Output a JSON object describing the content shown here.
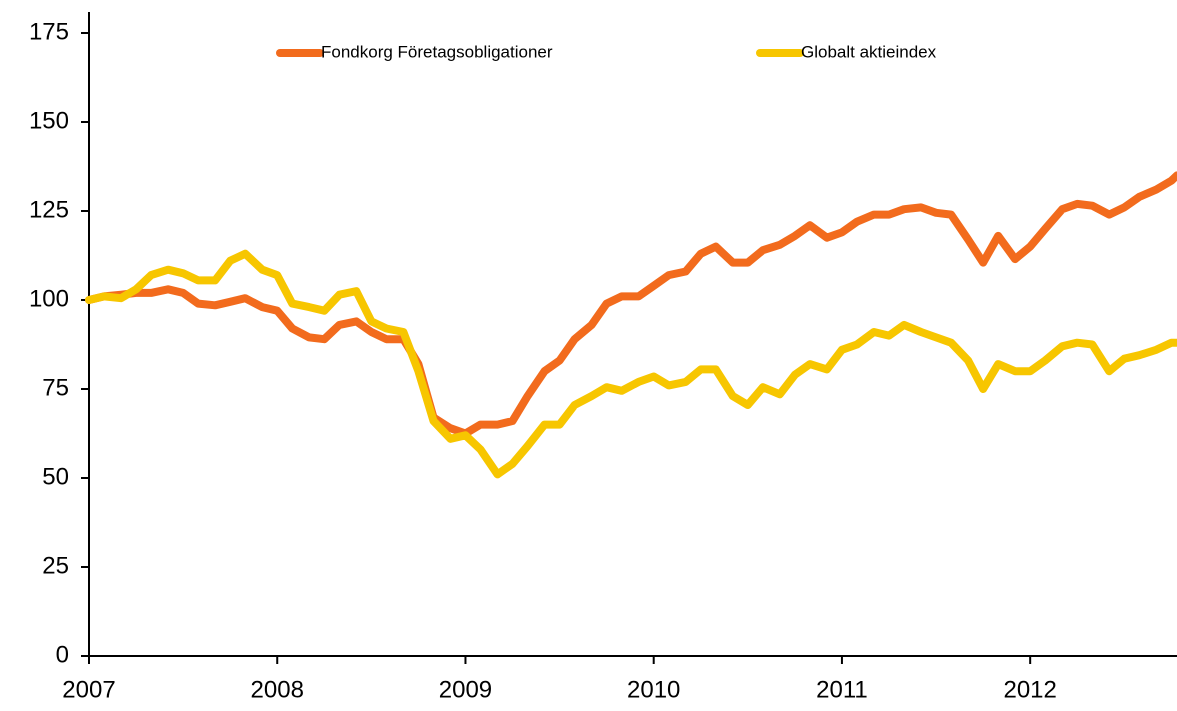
{
  "chart_data": {
    "type": "line",
    "x": [
      2007.0,
      2007.08,
      2007.17,
      2007.25,
      2007.33,
      2007.42,
      2007.5,
      2007.58,
      2007.67,
      2007.75,
      2007.83,
      2007.92,
      2008.0,
      2008.08,
      2008.17,
      2008.25,
      2008.33,
      2008.42,
      2008.5,
      2008.58,
      2008.67,
      2008.75,
      2008.83,
      2008.92,
      2009.0,
      2009.08,
      2009.17,
      2009.25,
      2009.33,
      2009.42,
      2009.5,
      2009.58,
      2009.67,
      2009.75,
      2009.83,
      2009.92,
      2010.0,
      2010.08,
      2010.17,
      2010.25,
      2010.33,
      2010.42,
      2010.5,
      2010.58,
      2010.67,
      2010.75,
      2010.83,
      2010.92,
      2011.0,
      2011.08,
      2011.17,
      2011.25,
      2011.33,
      2011.42,
      2011.5,
      2011.58,
      2011.67,
      2011.75,
      2011.83,
      2011.92,
      2012.0,
      2012.08,
      2012.17,
      2012.25,
      2012.33,
      2012.42,
      2012.5,
      2012.58,
      2012.67,
      2012.75,
      2012.78
    ],
    "series": [
      {
        "name": "Fondkorg Företagsobligationer",
        "color": "#f26b1d",
        "values": [
          100,
          101,
          101.5,
          102,
          102,
          103,
          102,
          99,
          98.5,
          99.5,
          100.5,
          98,
          97,
          92,
          89.5,
          89,
          93,
          94,
          91,
          89,
          89,
          82,
          67,
          64,
          62.5,
          65,
          65,
          66,
          73,
          80,
          83,
          89,
          93,
          99,
          101,
          101,
          104,
          107,
          108,
          113,
          115,
          110.5,
          110.5,
          114,
          115.5,
          118,
          121,
          117.5,
          119,
          122,
          124,
          124,
          125.5,
          126,
          124.5,
          124,
          117,
          110.5,
          118,
          111.5,
          115,
          120,
          125.5,
          127,
          126.5,
          124,
          126,
          129,
          131,
          133.5,
          135
        ]
      },
      {
        "name": "Globalt aktieindex",
        "color": "#f7c600",
        "values": [
          100,
          101,
          100.5,
          103,
          107,
          108.5,
          107.5,
          105.5,
          105.5,
          111,
          113,
          108.5,
          107,
          99,
          98,
          97,
          101.5,
          102.5,
          94,
          92,
          91,
          80,
          66,
          61,
          62,
          58,
          51,
          54,
          59,
          65,
          65,
          70.5,
          73,
          75.5,
          74.5,
          77,
          78.5,
          76,
          77,
          80.5,
          80.5,
          73,
          70.5,
          75.5,
          73.5,
          79,
          82,
          80.5,
          86,
          87.5,
          91,
          90,
          93,
          91,
          89.5,
          88,
          83,
          75,
          82,
          80,
          80,
          83,
          87,
          88,
          87.5,
          80,
          83.5,
          84.5,
          86,
          88,
          88
        ]
      }
    ],
    "xlim": [
      2007,
      2012.78
    ],
    "xticks": [
      2007,
      2008,
      2009,
      2010,
      2011,
      2012
    ],
    "ylim": [
      0,
      175
    ],
    "yticks": [
      0,
      25,
      50,
      75,
      100,
      125,
      150,
      175
    ],
    "grid": false,
    "legend": "top"
  }
}
